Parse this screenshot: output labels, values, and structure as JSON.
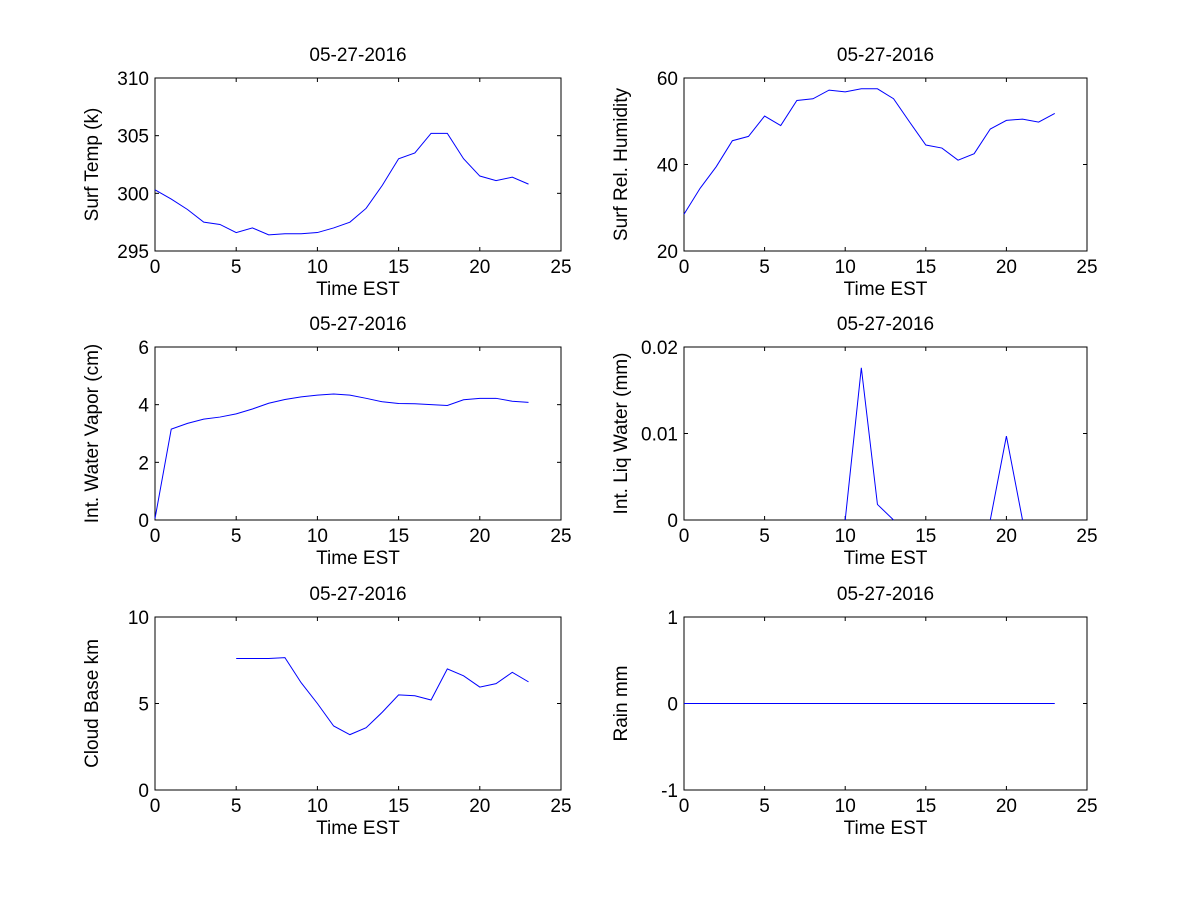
{
  "figure": {
    "background": "#ffffff",
    "line_color": "#0000ff",
    "axis_color": "#000000"
  },
  "chart_data": [
    {
      "type": "line",
      "title": "05-27-2016",
      "xlabel": "Time EST",
      "ylabel": "Surf Temp (k)",
      "xlim": [
        0,
        25
      ],
      "ylim": [
        295,
        310
      ],
      "xticks": [
        0,
        5,
        10,
        15,
        20,
        25
      ],
      "yticks": [
        295,
        300,
        305,
        310
      ],
      "ytick_labels": [
        "295",
        "300",
        "305",
        "310"
      ],
      "grid": false,
      "series": [
        {
          "x": [
            0,
            1,
            2,
            3,
            4,
            5,
            6,
            7,
            8,
            9,
            10,
            11,
            12,
            13,
            14,
            15,
            16,
            17,
            18,
            19,
            20,
            21,
            22,
            23
          ],
          "y": [
            300.3,
            299.5,
            298.6,
            297.5,
            297.3,
            296.6,
            297.0,
            296.4,
            296.5,
            296.5,
            296.6,
            297.0,
            297.5,
            298.7,
            300.7,
            303.0,
            303.5,
            305.2,
            305.2,
            303.0,
            301.5,
            301.1,
            301.4,
            300.8
          ]
        }
      ]
    },
    {
      "type": "line",
      "title": "05-27-2016",
      "xlabel": "Time EST",
      "ylabel": "Surf Rel. Humidity",
      "xlim": [
        0,
        25
      ],
      "ylim": [
        20,
        60
      ],
      "xticks": [
        0,
        5,
        10,
        15,
        20,
        25
      ],
      "yticks": [
        20,
        40,
        60
      ],
      "ytick_labels": [
        "20",
        "40",
        "60"
      ],
      "grid": false,
      "series": [
        {
          "x": [
            0,
            1,
            2,
            3,
            4,
            5,
            6,
            7,
            8,
            9,
            10,
            11,
            12,
            13,
            14,
            15,
            16,
            17,
            18,
            19,
            20,
            21,
            22,
            23
          ],
          "y": [
            28.5,
            34.5,
            39.5,
            45.5,
            46.5,
            51.2,
            49.0,
            54.8,
            55.2,
            57.2,
            56.8,
            57.5,
            57.5,
            55.2,
            49.8,
            44.5,
            43.8,
            41.0,
            42.5,
            48.2,
            50.2,
            50.5,
            49.8,
            51.8
          ]
        }
      ]
    },
    {
      "type": "line",
      "title": "05-27-2016",
      "xlabel": "Time EST",
      "ylabel": "Int. Water Vapor (cm)",
      "xlim": [
        0,
        25
      ],
      "ylim": [
        0,
        6
      ],
      "xticks": [
        0,
        5,
        10,
        15,
        20,
        25
      ],
      "yticks": [
        0,
        2,
        4,
        6
      ],
      "ytick_labels": [
        "0",
        "2",
        "4",
        "6"
      ],
      "grid": false,
      "series": [
        {
          "x": [
            0,
            1,
            2,
            3,
            4,
            5,
            6,
            7,
            8,
            9,
            10,
            11,
            12,
            13,
            14,
            15,
            16,
            17,
            18,
            19,
            20,
            21,
            22,
            23
          ],
          "y": [
            0.05,
            3.15,
            3.35,
            3.5,
            3.57,
            3.68,
            3.85,
            4.05,
            4.18,
            4.27,
            4.33,
            4.37,
            4.33,
            4.22,
            4.1,
            4.04,
            4.03,
            4.0,
            3.97,
            4.17,
            4.22,
            4.22,
            4.12,
            4.08
          ]
        }
      ]
    },
    {
      "type": "line",
      "title": "05-27-2016",
      "xlabel": "Time EST",
      "ylabel": "Int. Liq Water (mm)",
      "xlim": [
        0,
        25
      ],
      "ylim": [
        0,
        0.02
      ],
      "xticks": [
        0,
        5,
        10,
        15,
        20,
        25
      ],
      "yticks": [
        0,
        0.01,
        0.02
      ],
      "ytick_labels": [
        "0",
        "0.01",
        "0.02"
      ],
      "grid": false,
      "series": [
        {
          "segments": [
            {
              "x": [
                10,
                11,
                12,
                13
              ],
              "y": [
                0,
                0.0176,
                0.0018,
                0
              ]
            },
            {
              "x": [
                19,
                20,
                21
              ],
              "y": [
                0,
                0.0097,
                0
              ]
            }
          ]
        }
      ]
    },
    {
      "type": "line",
      "title": "05-27-2016",
      "xlabel": "Time EST",
      "ylabel": "Cloud Base km",
      "xlim": [
        0,
        25
      ],
      "ylim": [
        0,
        10
      ],
      "xticks": [
        0,
        5,
        10,
        15,
        20,
        25
      ],
      "yticks": [
        0,
        5,
        10
      ],
      "ytick_labels": [
        "0",
        "5",
        "10"
      ],
      "grid": false,
      "series": [
        {
          "x": [
            5,
            6,
            7,
            8,
            9,
            10,
            11,
            12,
            13,
            14,
            15,
            16,
            17,
            18,
            19,
            20,
            21,
            22,
            23
          ],
          "y": [
            7.6,
            7.6,
            7.6,
            7.65,
            6.2,
            5.0,
            3.7,
            3.2,
            3.6,
            4.5,
            5.5,
            5.45,
            5.2,
            7.0,
            6.6,
            5.95,
            6.15,
            6.8,
            6.25
          ]
        }
      ]
    },
    {
      "type": "line",
      "title": "05-27-2016",
      "xlabel": "Time EST",
      "ylabel": "Rain mm",
      "xlim": [
        0,
        25
      ],
      "ylim": [
        -1,
        1
      ],
      "xticks": [
        0,
        5,
        10,
        15,
        20,
        25
      ],
      "yticks": [
        -1,
        0,
        1
      ],
      "ytick_labels": [
        "-1",
        "0",
        "1"
      ],
      "grid": false,
      "series": [
        {
          "x": [
            0,
            23
          ],
          "y": [
            0,
            0
          ]
        }
      ]
    }
  ]
}
